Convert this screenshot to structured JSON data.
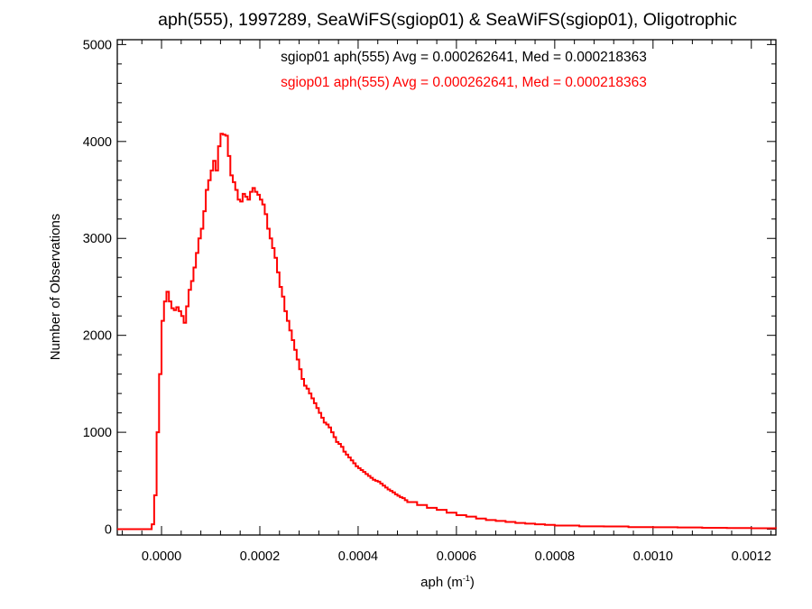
{
  "chart_data": {
    "type": "histogram",
    "title": "aph(555), 1997289, SeaWiFS(sgiop01) & SeaWiFS(sgiop01), Oligotrophic",
    "xlabel": "aph (m",
    "xlabel_sup": "-1",
    "xlabel_close": ")",
    "ylabel": "Number of Observations",
    "xlim": [
      -9e-05,
      0.00125
    ],
    "ylim": [
      -60,
      5050
    ],
    "xticks": [
      0.0,
      0.0002,
      0.0004,
      0.0006,
      0.0008,
      0.001,
      0.0012
    ],
    "xtick_labels": [
      "0.0000",
      "0.0002",
      "0.0004",
      "0.0006",
      "0.0008",
      "0.0010",
      "0.0012"
    ],
    "yticks": [
      0,
      1000,
      2000,
      3000,
      4000,
      5000
    ],
    "ytick_labels": [
      "0",
      "1000",
      "2000",
      "3000",
      "4000",
      "5000"
    ],
    "grid": false,
    "legend_position": "top-center",
    "legend": [
      {
        "text": "sgiop01 aph(555) Avg = 0.000262641, Med = 0.000218363",
        "color": "#000000"
      },
      {
        "text": "sgiop01 aph(555) Avg = 0.000262641, Med = 0.000218363",
        "color": "#ff0000"
      }
    ],
    "series": [
      {
        "color": "#ff0000",
        "style": "step",
        "x": [
          -9e-05,
          -2e-05,
          -1.5e-05,
          -1e-05,
          -5e-06,
          0.0,
          5e-06,
          1e-05,
          1.5e-05,
          2e-05,
          2.5e-05,
          3e-05,
          3.5e-05,
          4e-05,
          4.5e-05,
          5e-05,
          5.5e-05,
          6e-05,
          6.5e-05,
          7e-05,
          7.5e-05,
          8e-05,
          8.5e-05,
          9e-05,
          9.5e-05,
          0.0001,
          0.000105,
          0.00011,
          0.000115,
          0.00012,
          0.000125,
          0.00013,
          0.000135,
          0.00014,
          0.000145,
          0.00015,
          0.000155,
          0.00016,
          0.000165,
          0.00017,
          0.000175,
          0.00018,
          0.000185,
          0.00019,
          0.000195,
          0.0002,
          0.000205,
          0.00021,
          0.000215,
          0.00022,
          0.000225,
          0.00023,
          0.000235,
          0.00024,
          0.000245,
          0.00025,
          0.000255,
          0.00026,
          0.000265,
          0.00027,
          0.000275,
          0.00028,
          0.000285,
          0.00029,
          0.000295,
          0.0003,
          0.000305,
          0.00031,
          0.000315,
          0.00032,
          0.000325,
          0.00033,
          0.000335,
          0.00034,
          0.000345,
          0.00035,
          0.000355,
          0.00036,
          0.000365,
          0.00037,
          0.000375,
          0.00038,
          0.000385,
          0.00039,
          0.000395,
          0.0004,
          0.000405,
          0.00041,
          0.000415,
          0.00042,
          0.000425,
          0.00043,
          0.000435,
          0.00044,
          0.000445,
          0.00045,
          0.000455,
          0.00046,
          0.000465,
          0.00047,
          0.000475,
          0.00048,
          0.000485,
          0.00049,
          0.000495,
          0.0005,
          0.00052,
          0.00054,
          0.00056,
          0.00058,
          0.0006,
          0.00062,
          0.00064,
          0.00066,
          0.00068,
          0.0007,
          0.00072,
          0.00074,
          0.00076,
          0.00078,
          0.0008,
          0.00085,
          0.0009,
          0.00095,
          0.001,
          0.00105,
          0.0011,
          0.00115,
          0.0012,
          0.00125
        ],
        "y": [
          0,
          50,
          350,
          1000,
          1600,
          2150,
          2350,
          2450,
          2350,
          2280,
          2260,
          2290,
          2250,
          2200,
          2130,
          2300,
          2470,
          2560,
          2700,
          2850,
          3000,
          3100,
          3280,
          3500,
          3600,
          3700,
          3800,
          3700,
          3950,
          4080,
          4070,
          4060,
          3850,
          3650,
          3580,
          3500,
          3400,
          3380,
          3460,
          3430,
          3400,
          3480,
          3520,
          3480,
          3450,
          3400,
          3350,
          3250,
          3100,
          3000,
          2900,
          2800,
          2650,
          2500,
          2400,
          2250,
          2150,
          2050,
          1950,
          1850,
          1750,
          1650,
          1550,
          1480,
          1450,
          1400,
          1350,
          1300,
          1250,
          1200,
          1150,
          1100,
          1080,
          1050,
          1000,
          950,
          900,
          880,
          850,
          800,
          770,
          740,
          710,
          680,
          650,
          630,
          610,
          590,
          570,
          550,
          530,
          510,
          500,
          490,
          470,
          450,
          430,
          410,
          395,
          380,
          360,
          345,
          330,
          320,
          300,
          280,
          250,
          220,
          200,
          170,
          145,
          130,
          110,
          95,
          85,
          75,
          65,
          58,
          50,
          45,
          38,
          30,
          28,
          22,
          20,
          18,
          15,
          12,
          10,
          8
        ]
      }
    ]
  }
}
